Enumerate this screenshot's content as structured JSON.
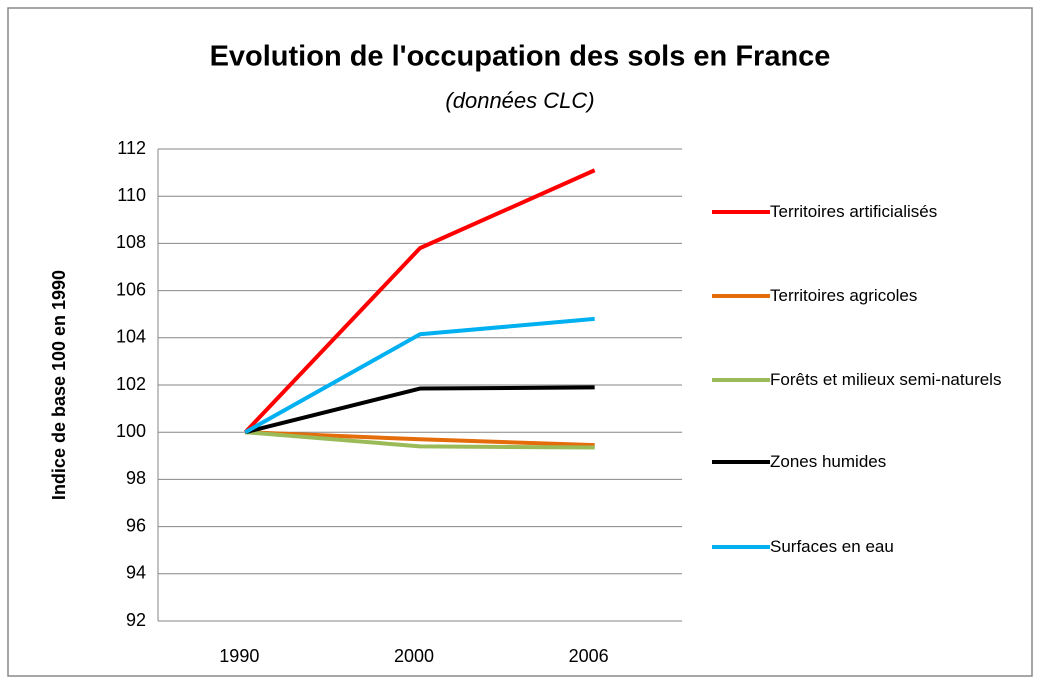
{
  "chart_data": {
    "type": "line",
    "title": "Evolution de l'occupation des sols en France",
    "subtitle": "(données CLC)",
    "y_label": "Indice de base 100 en 1990",
    "categories": [
      "1990",
      "2000",
      "2006"
    ],
    "series": [
      {
        "name": "Territoires artificialisés",
        "color": "#ff0000",
        "values": [
          100,
          107.8,
          111.1
        ]
      },
      {
        "name": "Territoires agricoles",
        "color": "#e46c0a",
        "values": [
          100,
          99.7,
          99.45
        ]
      },
      {
        "name": "Forêts et milieux semi-naturels",
        "color": "#9bbb59",
        "values": [
          100,
          99.4,
          99.35
        ]
      },
      {
        "name": "Zones humides",
        "color": "#000000",
        "values": [
          100,
          101.85,
          101.9
        ]
      },
      {
        "name": "Surfaces en eau",
        "color": "#00b0f0",
        "values": [
          100,
          104.15,
          104.8
        ]
      }
    ],
    "ylim": [
      92,
      112
    ],
    "yticks": [
      92,
      94,
      96,
      98,
      100,
      102,
      104,
      106,
      108,
      110,
      112
    ],
    "grid": true,
    "legend": "right"
  }
}
